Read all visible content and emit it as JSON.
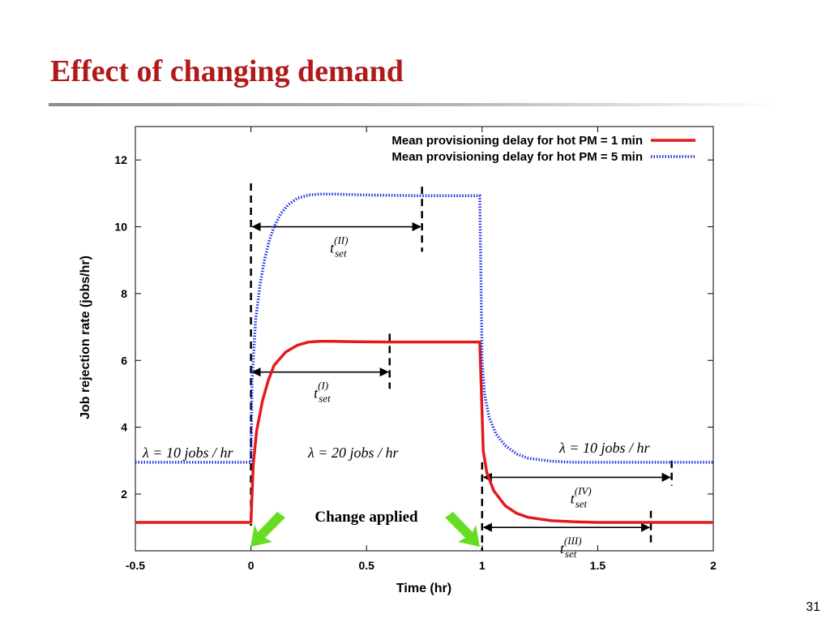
{
  "slide": {
    "title": "Effect of changing demand",
    "page_number": "31"
  },
  "chart_data": {
    "type": "line",
    "xlabel": "Time (hr)",
    "ylabel": "Job rejection rate (jobs/hr)",
    "xlim": [
      -0.5,
      2
    ],
    "ylim": [
      0.3,
      13
    ],
    "xticks": [
      -0.5,
      0,
      0.5,
      1,
      1.5,
      2
    ],
    "xtick_labels": [
      "-0.5",
      "0",
      "0.5",
      "1",
      "1.5",
      "2"
    ],
    "yticks": [
      2,
      4,
      6,
      8,
      10,
      12
    ],
    "ytick_labels": [
      "2",
      "4",
      "6",
      "8",
      "10",
      "12"
    ],
    "grid": false,
    "legend_position": "top-right",
    "series": [
      {
        "name": "Mean provisioning delay for hot PM = 1 min",
        "color": "#e31a1c",
        "style": "solid",
        "x": [
          -0.5,
          0,
          0.01,
          0.025,
          0.05,
          0.075,
          0.1,
          0.15,
          0.2,
          0.25,
          0.3,
          0.35,
          0.45,
          0.6,
          0.8,
          0.99,
          1.0,
          1.005,
          1.02,
          1.05,
          1.1,
          1.15,
          1.2,
          1.3,
          1.4,
          1.5,
          1.6,
          1.8,
          2.0
        ],
        "y": [
          1.15,
          1.15,
          2.9,
          3.9,
          4.8,
          5.4,
          5.85,
          6.25,
          6.45,
          6.55,
          6.57,
          6.57,
          6.56,
          6.55,
          6.55,
          6.55,
          4.4,
          3.3,
          2.65,
          2.1,
          1.65,
          1.42,
          1.3,
          1.2,
          1.17,
          1.15,
          1.15,
          1.15,
          1.15
        ]
      },
      {
        "name": "Mean provisioning delay for hot PM = 5 min",
        "color": "#1a2ee0",
        "style": "dotted",
        "x": [
          -0.5,
          0,
          0.005,
          0.02,
          0.04,
          0.06,
          0.08,
          0.1,
          0.13,
          0.16,
          0.2,
          0.25,
          0.3,
          0.35,
          0.4,
          0.5,
          0.7,
          0.99,
          1.0,
          1.01,
          1.03,
          1.06,
          1.1,
          1.15,
          1.2,
          1.3,
          1.4,
          1.5,
          1.7,
          2.0
        ],
        "y": [
          2.95,
          2.95,
          5.4,
          7.2,
          8.3,
          9.05,
          9.6,
          10.0,
          10.4,
          10.65,
          10.85,
          10.95,
          10.98,
          10.98,
          10.97,
          10.95,
          10.93,
          10.93,
          6.0,
          5.0,
          4.3,
          3.8,
          3.45,
          3.2,
          3.07,
          2.98,
          2.95,
          2.95,
          2.95,
          2.95
        ]
      }
    ],
    "annotations": {
      "lambda_before": "λ = 10 jobs / hr",
      "lambda_during": "λ = 20 jobs / hr",
      "lambda_after": "λ = 10 jobs / hr",
      "change_applied": "Change applied",
      "settling_times": [
        {
          "sup": "(I)",
          "start": 0,
          "end": 0.6,
          "y": 5.65
        },
        {
          "sup": "(II)",
          "start": 0,
          "end": 0.74,
          "y": 10.0
        },
        {
          "sup": "(III)",
          "start": 1.0,
          "end": 1.73,
          "y": 1.0
        },
        {
          "sup": "(IV)",
          "start": 1.0,
          "end": 1.82,
          "y": 2.5
        }
      ],
      "t_label": "t",
      "t_sub": "set"
    }
  }
}
